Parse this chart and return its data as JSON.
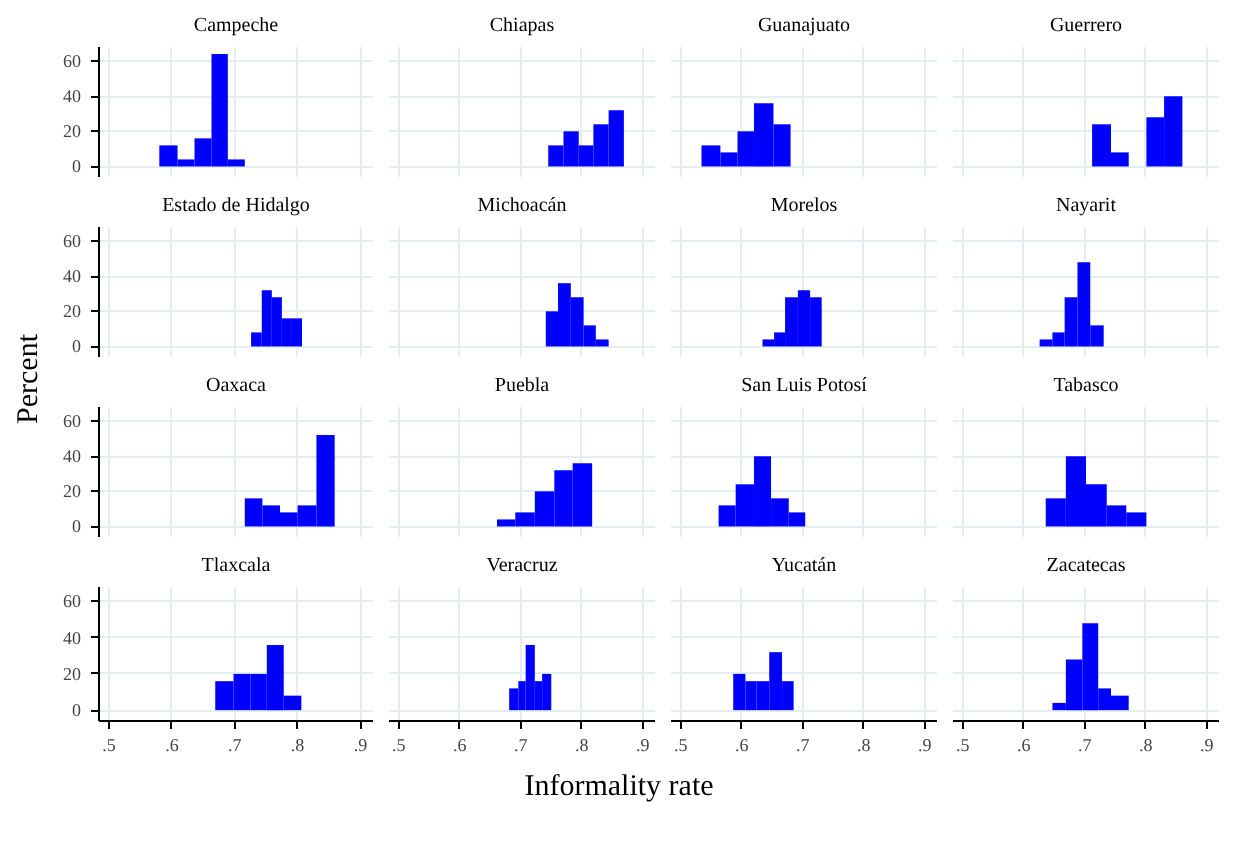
{
  "chart_data": [
    {
      "type": "histogram",
      "title": "Campeche",
      "xlabel": "Informality rate",
      "ylabel": "Percent",
      "bins": [
        0.58,
        0.609,
        0.636,
        0.663,
        0.689,
        0.716
      ],
      "values": [
        12,
        4,
        16,
        64,
        4
      ],
      "color": "#0000ff",
      "xlim": [
        0.484,
        0.92
      ],
      "ylim": [
        -6,
        68
      ],
      "xticks": [
        0.5,
        0.6,
        0.7,
        0.8,
        0.9
      ],
      "yticks": [
        0,
        20,
        40,
        60
      ],
      "grid": true,
      "tick_labels": "y"
    },
    {
      "type": "histogram",
      "title": "Chiapas",
      "bins": [
        0.745,
        0.77,
        0.795,
        0.819,
        0.844,
        0.869
      ],
      "values": [
        12,
        20,
        12,
        24,
        32
      ],
      "color": "#0000ff",
      "xlim": [
        0.484,
        0.92
      ],
      "ylim": [
        -6,
        68
      ],
      "xticks": [
        0.5,
        0.6,
        0.7,
        0.8,
        0.9
      ],
      "yticks": [
        0,
        20,
        40,
        60
      ],
      "grid": true,
      "tick_labels": false
    },
    {
      "type": "histogram",
      "title": "Guanajuato",
      "bins": [
        0.534,
        0.565,
        0.593,
        0.62,
        0.652,
        0.68
      ],
      "values": [
        12,
        8,
        20,
        36,
        24
      ],
      "color": "#0000ff",
      "xlim": [
        0.484,
        0.92
      ],
      "ylim": [
        -6,
        68
      ],
      "xticks": [
        0.5,
        0.6,
        0.7,
        0.8,
        0.9
      ],
      "yticks": [
        0,
        20,
        40,
        60
      ],
      "grid": true,
      "tick_labels": false
    },
    {
      "type": "histogram",
      "title": "Guerrero",
      "bins": [
        0.712,
        0.743,
        0.772,
        0.801,
        0.83,
        0.86
      ],
      "values": [
        24,
        8,
        0,
        28,
        40
      ],
      "color": "#0000ff",
      "xlim": [
        0.484,
        0.92
      ],
      "ylim": [
        -6,
        68
      ],
      "xticks": [
        0.5,
        0.6,
        0.7,
        0.8,
        0.9
      ],
      "yticks": [
        0,
        20,
        40,
        60
      ],
      "grid": true,
      "tick_labels": false
    },
    {
      "type": "histogram",
      "title": "Estado de Hidalgo",
      "bins": [
        0.726,
        0.743,
        0.759,
        0.775,
        0.791,
        0.807
      ],
      "values": [
        8,
        32,
        28,
        16,
        16
      ],
      "color": "#0000ff",
      "xlim": [
        0.484,
        0.92
      ],
      "ylim": [
        -6,
        68
      ],
      "xticks": [
        0.5,
        0.6,
        0.7,
        0.8,
        0.9
      ],
      "yticks": [
        0,
        20,
        40,
        60
      ],
      "grid": true,
      "tick_labels": "y"
    },
    {
      "type": "histogram",
      "title": "Michoacán",
      "bins": [
        0.741,
        0.761,
        0.782,
        0.803,
        0.823,
        0.844
      ],
      "values": [
        20,
        36,
        28,
        12,
        4
      ],
      "color": "#0000ff",
      "xlim": [
        0.484,
        0.92
      ],
      "ylim": [
        -6,
        68
      ],
      "xticks": [
        0.5,
        0.6,
        0.7,
        0.8,
        0.9
      ],
      "yticks": [
        0,
        20,
        40,
        60
      ],
      "grid": true,
      "tick_labels": false
    },
    {
      "type": "histogram",
      "title": "Morelos",
      "bins": [
        0.634,
        0.653,
        0.671,
        0.692,
        0.712,
        0.731
      ],
      "values": [
        4,
        8,
        28,
        32,
        28
      ],
      "color": "#0000ff",
      "xlim": [
        0.484,
        0.92
      ],
      "ylim": [
        -6,
        68
      ],
      "xticks": [
        0.5,
        0.6,
        0.7,
        0.8,
        0.9
      ],
      "yticks": [
        0,
        20,
        40,
        60
      ],
      "grid": true,
      "tick_labels": false
    },
    {
      "type": "histogram",
      "title": "Nayarit",
      "bins": [
        0.626,
        0.647,
        0.667,
        0.688,
        0.709,
        0.731
      ],
      "values": [
        4,
        8,
        28,
        48,
        12
      ],
      "color": "#0000ff",
      "xlim": [
        0.484,
        0.92
      ],
      "ylim": [
        -6,
        68
      ],
      "xticks": [
        0.5,
        0.6,
        0.7,
        0.8,
        0.9
      ],
      "yticks": [
        0,
        20,
        40,
        60
      ],
      "grid": true,
      "tick_labels": false
    },
    {
      "type": "histogram",
      "title": "Oaxaca",
      "bins": [
        0.716,
        0.744,
        0.772,
        0.8,
        0.83,
        0.859
      ],
      "values": [
        16,
        12,
        8,
        12,
        52
      ],
      "color": "#0000ff",
      "xlim": [
        0.484,
        0.92
      ],
      "ylim": [
        -6,
        68
      ],
      "xticks": [
        0.5,
        0.6,
        0.7,
        0.8,
        0.9
      ],
      "yticks": [
        0,
        20,
        40,
        60
      ],
      "grid": true,
      "tick_labels": "y"
    },
    {
      "type": "histogram",
      "title": "Puebla",
      "bins": [
        0.661,
        0.691,
        0.723,
        0.755,
        0.785,
        0.817
      ],
      "values": [
        4,
        8,
        20,
        32,
        36
      ],
      "color": "#0000ff",
      "xlim": [
        0.484,
        0.92
      ],
      "ylim": [
        -6,
        68
      ],
      "xticks": [
        0.5,
        0.6,
        0.7,
        0.8,
        0.9
      ],
      "yticks": [
        0,
        20,
        40,
        60
      ],
      "grid": true,
      "tick_labels": false
    },
    {
      "type": "histogram",
      "title": "San Luis Potosí",
      "bins": [
        0.562,
        0.59,
        0.62,
        0.648,
        0.677,
        0.704
      ],
      "values": [
        12,
        24,
        40,
        16,
        8
      ],
      "color": "#0000ff",
      "xlim": [
        0.484,
        0.92
      ],
      "ylim": [
        -6,
        68
      ],
      "xticks": [
        0.5,
        0.6,
        0.7,
        0.8,
        0.9
      ],
      "yticks": [
        0,
        20,
        40,
        60
      ],
      "grid": true,
      "tick_labels": false
    },
    {
      "type": "histogram",
      "title": "Tabasco",
      "bins": [
        0.636,
        0.669,
        0.702,
        0.736,
        0.768,
        0.801
      ],
      "values": [
        16,
        40,
        24,
        12,
        8
      ],
      "color": "#0000ff",
      "xlim": [
        0.484,
        0.92
      ],
      "ylim": [
        -6,
        68
      ],
      "xticks": [
        0.5,
        0.6,
        0.7,
        0.8,
        0.9
      ],
      "yticks": [
        0,
        20,
        40,
        60
      ],
      "grid": true,
      "tick_labels": false
    },
    {
      "type": "histogram",
      "title": "Tlaxcala",
      "bins": [
        0.669,
        0.698,
        0.725,
        0.751,
        0.778,
        0.806
      ],
      "values": [
        16,
        20,
        20,
        36,
        8
      ],
      "color": "#0000ff",
      "xlim": [
        0.484,
        0.92
      ],
      "ylim": [
        -6,
        68
      ],
      "xticks": [
        {
          "value": 0.5,
          "label": ".5"
        },
        {
          "value": 0.6,
          "label": ".6"
        },
        {
          "value": 0.7,
          "label": ".7"
        },
        {
          "value": 0.8,
          "label": ".8"
        },
        {
          "value": 0.9,
          "label": ".9"
        }
      ],
      "yticks": [
        0,
        20,
        40,
        60
      ],
      "grid": true
    },
    {
      "type": "histogram",
      "title": "Veracruz",
      "bins": [
        0.681,
        0.696,
        0.708,
        0.723,
        0.735,
        0.75
      ],
      "values": [
        12,
        16,
        36,
        16,
        20
      ],
      "color": "#0000ff",
      "xlim": [
        0.484,
        0.92
      ],
      "ylim": [
        -6,
        68
      ],
      "xticks": [
        {
          "value": 0.5,
          "label": ".5"
        },
        {
          "value": 0.6,
          "label": ".6"
        },
        {
          "value": 0.7,
          "label": ".7"
        },
        {
          "value": 0.8,
          "label": ".8"
        },
        {
          "value": 0.9,
          "label": ".9"
        }
      ],
      "yticks": [
        0,
        20,
        40,
        60
      ],
      "grid": true,
      "tick_labels": "x"
    },
    {
      "type": "histogram",
      "title": "Yucatán",
      "bins": [
        0.586,
        0.606,
        0.624,
        0.645,
        0.666,
        0.685
      ],
      "values": [
        20,
        16,
        16,
        32,
        16
      ],
      "color": "#0000ff",
      "xlim": [
        0.484,
        0.92
      ],
      "ylim": [
        -6,
        68
      ],
      "xticks": [
        {
          "value": 0.5,
          "label": ".5"
        },
        {
          "value": 0.6,
          "label": ".6"
        },
        {
          "value": 0.7,
          "label": ".7"
        },
        {
          "value": 0.8,
          "label": ".8"
        },
        {
          "value": 0.9,
          "label": ".9"
        }
      ],
      "yticks": [
        0,
        20,
        40,
        60
      ],
      "grid": true,
      "tick_labels": "x"
    },
    {
      "type": "histogram",
      "title": "Zacatecas",
      "bins": [
        0.647,
        0.669,
        0.696,
        0.722,
        0.743,
        0.772
      ],
      "values": [
        4,
        28,
        48,
        12,
        8
      ],
      "color": "#0000ff",
      "xlim": [
        0.484,
        0.92
      ],
      "ylim": [
        -6,
        68
      ],
      "xticks": [
        {
          "value": 0.5,
          "label": ".5"
        },
        {
          "value": 0.6,
          "label": ".6"
        },
        {
          "value": 0.7,
          "label": ".7"
        },
        {
          "value": 0.8,
          "label": ".8"
        },
        {
          "value": 0.9,
          "label": ".9"
        }
      ],
      "yticks": [
        0,
        20,
        40,
        60
      ],
      "grid": true,
      "tick_labels": "x"
    }
  ]
}
